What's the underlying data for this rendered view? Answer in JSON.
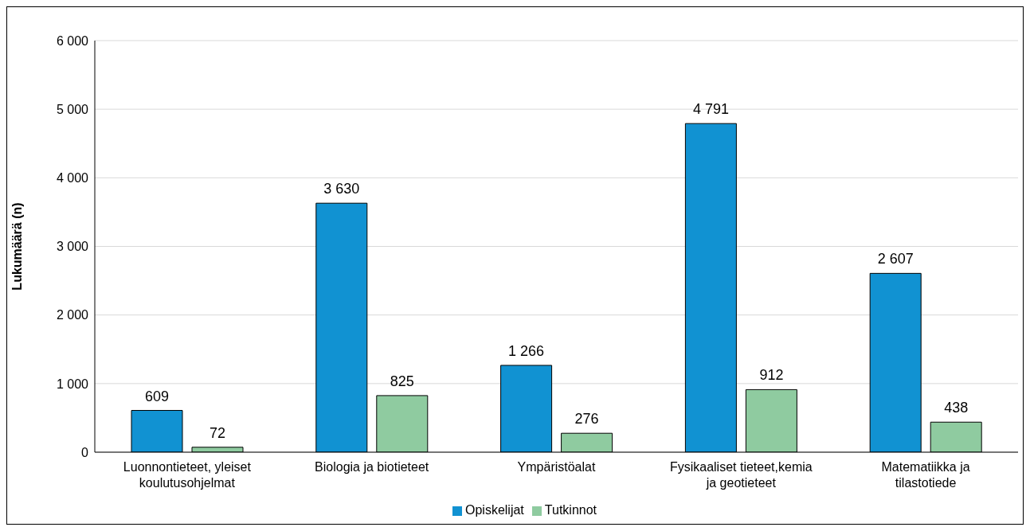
{
  "chart_data": {
    "type": "bar",
    "ylabel": "Lukumäärä (n)",
    "categories": [
      "Luonnontieteet, yleiset koulutusohjelmat",
      "Biologia ja biotieteet",
      "Ympäristöalat",
      "Fysikaaliset tieteet,kemia ja geotieteet",
      "Matematiikka ja tilastotiede"
    ],
    "series": [
      {
        "name": "Opiskelijat",
        "color": "#1192d2",
        "values": [
          609,
          3630,
          1266,
          4791,
          2607
        ],
        "value_labels": [
          "609",
          "3 630",
          "1 266",
          "4 791",
          "2 607"
        ]
      },
      {
        "name": "Tutkinnot",
        "color": "#8fcba0",
        "values": [
          72,
          825,
          276,
          912,
          438
        ],
        "value_labels": [
          "72",
          "825",
          "276",
          "912",
          "438"
        ]
      }
    ],
    "ylim": [
      0,
      6000
    ],
    "yticks": [
      {
        "value": 0,
        "label": "0"
      },
      {
        "value": 1000,
        "label": "1 000"
      },
      {
        "value": 2000,
        "label": "2 000"
      },
      {
        "value": 3000,
        "label": "3 000"
      },
      {
        "value": 4000,
        "label": "4 000"
      },
      {
        "value": 5000,
        "label": "5 000"
      },
      {
        "value": 6000,
        "label": "6 000"
      }
    ],
    "grid": "y",
    "legend": "bottom"
  }
}
